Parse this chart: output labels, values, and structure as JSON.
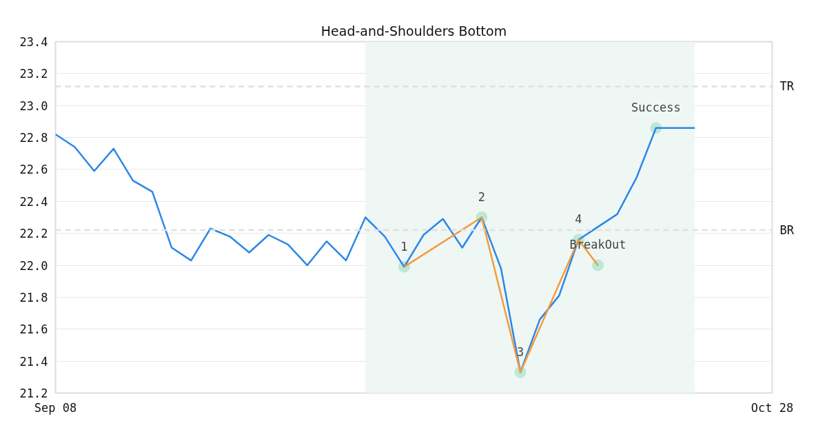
{
  "chart_data": {
    "type": "line",
    "title": "Head-and-Shoulders Bottom",
    "categories": [
      "Sep 08",
      null,
      null,
      null,
      null,
      null,
      null,
      null,
      null,
      null,
      null,
      null,
      null,
      null,
      null,
      null,
      null,
      null,
      null,
      null,
      null,
      null,
      null,
      null,
      null,
      null,
      null,
      null,
      null,
      null,
      null,
      null,
      null,
      null,
      null,
      null,
      null,
      "Oct 28"
    ],
    "series": [
      {
        "color": "#2b86e8",
        "values": [
          22.82,
          22.74,
          22.59,
          22.73,
          22.53,
          22.46,
          22.11,
          22.03,
          22.23,
          22.18,
          22.08,
          22.19,
          22.13,
          22.0,
          22.15,
          22.03,
          22.3,
          22.18,
          21.99,
          22.19,
          22.29,
          22.11,
          22.3,
          21.98,
          21.33,
          21.66,
          21.81,
          22.16,
          22.24,
          22.32,
          22.55,
          22.86,
          22.86,
          22.86,
          null,
          null,
          null,
          null
        ]
      },
      {
        "color": "#f59a3c",
        "values": [
          null,
          null,
          null,
          null,
          null,
          null,
          null,
          null,
          null,
          null,
          null,
          null,
          null,
          null,
          null,
          null,
          null,
          null,
          21.99,
          null,
          null,
          null,
          22.3,
          null,
          21.33,
          null,
          null,
          22.16,
          22.0,
          null,
          null,
          null,
          null,
          null,
          null,
          null,
          null,
          null
        ]
      },
      {
        "type": "scatter",
        "color": "#bde8d6",
        "values": [
          null,
          null,
          null,
          null,
          null,
          null,
          null,
          null,
          null,
          null,
          null,
          null,
          null,
          null,
          null,
          null,
          null,
          null,
          21.99,
          null,
          null,
          null,
          22.3,
          null,
          21.33,
          null,
          null,
          22.16,
          22.0,
          null,
          null,
          22.86,
          null,
          null,
          null,
          null,
          null,
          null
        ]
      }
    ],
    "ylim": [
      21.2,
      23.4
    ],
    "yticks": [
      21.2,
      21.4,
      21.6,
      21.8,
      {
        "value": 22.0,
        "label": "22.0"
      },
      22.2,
      22.4,
      22.6,
      22.8,
      {
        "value": 23.0,
        "label": "23.0"
      },
      23.2,
      23.4
    ],
    "grid": "y",
    "ref_lines": [
      {
        "axis": "y",
        "value": 23.12,
        "label": "TR",
        "color": "#e0e0e0",
        "line_style": "dashed"
      },
      {
        "axis": "y",
        "value": 22.22,
        "label": "BR",
        "color": "#e0e0e0",
        "line_style": "dashed"
      }
    ],
    "annotations": [
      {
        "text": "1",
        "y": 21.99
      },
      {
        "text": "2",
        "y": 22.3
      },
      {
        "text": "3",
        "y": 21.33
      },
      {
        "text": "4",
        "y": 22.16
      },
      {
        "text": "BreakOut",
        "y": 22.0
      },
      {
        "text": "Success",
        "y": 22.86
      }
    ]
  }
}
